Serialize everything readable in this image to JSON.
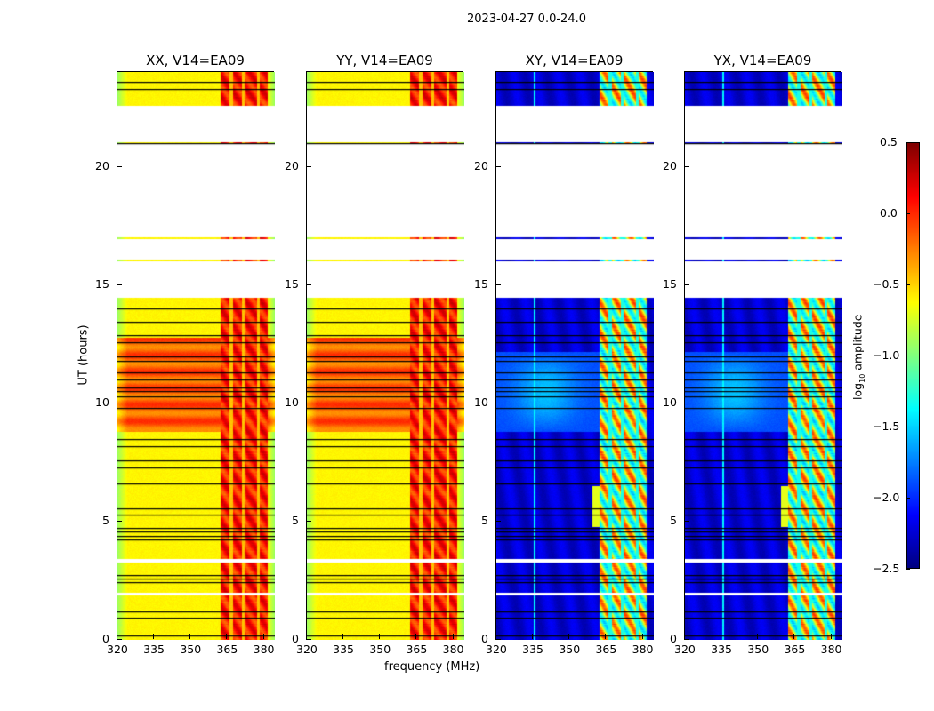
{
  "chart_data": {
    "type": "heatmap",
    "title": "2023-04-27 0.0-24.0",
    "xlabel": "frequency (MHz)",
    "ylabel": "UT (hours)",
    "xlim": [
      320,
      384.5
    ],
    "ylim": [
      0,
      24
    ],
    "xticks": [
      "320",
      "335",
      "350",
      "365",
      "380"
    ],
    "xtick_values": [
      320,
      335,
      350,
      365,
      380
    ],
    "yticks": [
      "0",
      "5",
      "10",
      "15",
      "20"
    ],
    "ytick_values": [
      0,
      5,
      10,
      15,
      20
    ],
    "panels": [
      {
        "title": "XX, V14=EA09",
        "kind": "parallel"
      },
      {
        "title": "YY, V14=EA09",
        "kind": "parallel"
      },
      {
        "title": "XY, V14=EA09",
        "kind": "cross"
      },
      {
        "title": "YX, V14=EA09",
        "kind": "cross"
      }
    ],
    "colorbar": {
      "label": "log10 amplitude",
      "range": [
        -2.5,
        0.5
      ],
      "ticks": [
        "0.5",
        "0.0",
        "−0.5",
        "−1.0",
        "−1.5",
        "−2.0",
        "−2.5"
      ],
      "tick_values": [
        0.5,
        0.0,
        -0.5,
        -1.0,
        -1.5,
        -2.0,
        -2.5
      ],
      "colormap": "jet"
    },
    "flagged_time_ranges_hours": [
      [
        21.05,
        22.55
      ],
      [
        17.05,
        20.98
      ],
      [
        16.1,
        16.95
      ],
      [
        14.47,
        16.03
      ],
      [
        3.3,
        3.45
      ],
      [
        1.9,
        2.0
      ]
    ],
    "zero_rows_hours": [
      0.2,
      0.95,
      1.2,
      2.45,
      2.6,
      2.75,
      4.25,
      4.4,
      4.6,
      4.75,
      5.3,
      5.55,
      6.6,
      7.3,
      7.6,
      8.2,
      8.5,
      9.8,
      10.3,
      10.5,
      10.65,
      11.0,
      11.3,
      11.8,
      12.0,
      12.6,
      12.9,
      13.45,
      14.0,
      21.0,
      23.3,
      23.6
    ]
  }
}
